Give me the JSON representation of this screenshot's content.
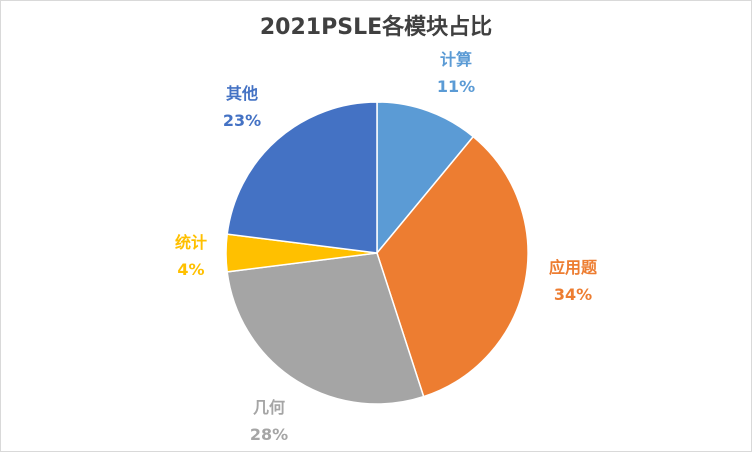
{
  "chart_data": {
    "type": "pie",
    "title": "2021PSLE各模块占比",
    "slices": [
      {
        "label": "计算",
        "value": 11,
        "value_label": "11%",
        "color": "#5b9bd5"
      },
      {
        "label": "应用题",
        "value": 34,
        "value_label": "34%",
        "color": "#ed7d31"
      },
      {
        "label": "几何",
        "value": 28,
        "value_label": "28%",
        "color": "#a5a5a5"
      },
      {
        "label": "统计",
        "value": 4,
        "value_label": "4%",
        "color": "#ffc000"
      },
      {
        "label": "其他",
        "value": 23,
        "value_label": "23%",
        "color": "#4472c4"
      }
    ],
    "legend": "none",
    "data_labels": "outside"
  }
}
